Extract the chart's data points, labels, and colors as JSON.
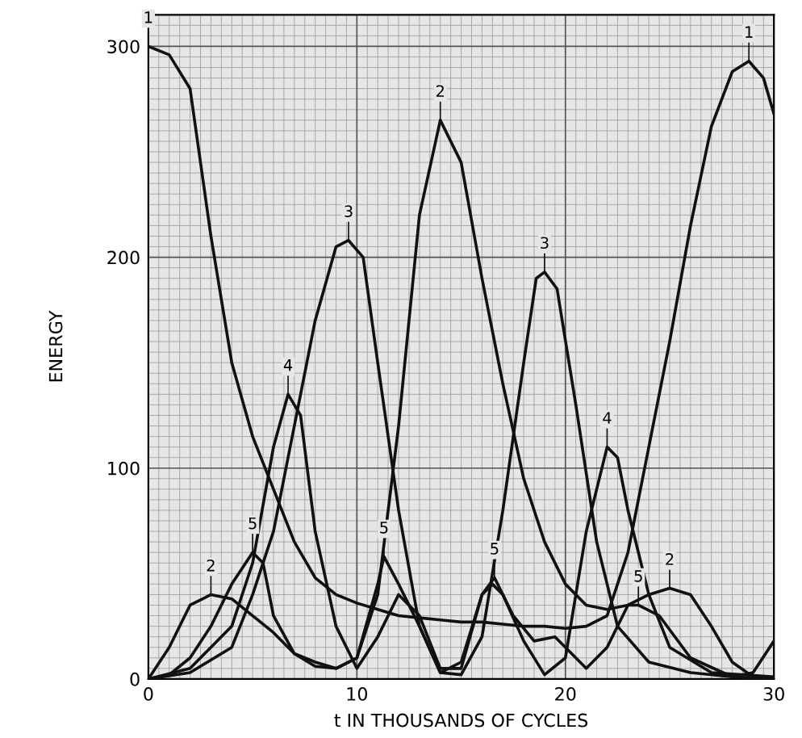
{
  "chart_data": {
    "type": "line",
    "xlabel": "t IN THOUSANDS OF CYCLES",
    "ylabel": "ENERGY",
    "xlim": [
      0,
      30
    ],
    "xticks": [
      0,
      10,
      20,
      30
    ],
    "ylim": [
      0,
      315
    ],
    "yticks": [
      0,
      100,
      200,
      300
    ],
    "grid": true,
    "legend": false,
    "marker": "none",
    "line_style": "solid",
    "series": [
      {
        "color": "#111111",
        "x": [
          0,
          1,
          2,
          3,
          4,
          5,
          6,
          7,
          8,
          9,
          10,
          11,
          12,
          13,
          14,
          15,
          16,
          17,
          18,
          19,
          20,
          21,
          22,
          23,
          24,
          25,
          26,
          27,
          28,
          28.8,
          29.5,
          30
        ],
        "values": [
          300,
          296,
          280,
          210,
          150,
          115,
          90,
          65,
          48,
          40,
          36,
          33,
          30,
          29,
          28,
          27,
          27,
          26,
          25,
          25,
          24,
          25,
          30,
          60,
          110,
          160,
          215,
          262,
          288,
          293,
          285,
          268
        ]
      },
      {
        "color": "#111111",
        "x": [
          0,
          1,
          2,
          3,
          4,
          5,
          6,
          7,
          8,
          9,
          10,
          11,
          12,
          13,
          14,
          15,
          16,
          17,
          18,
          19,
          20,
          21,
          22,
          23,
          24,
          25,
          26,
          27,
          28,
          29,
          30
        ],
        "values": [
          0,
          15,
          35,
          40,
          38,
          30,
          22,
          12,
          6,
          5,
          10,
          40,
          120,
          220,
          265,
          245,
          190,
          140,
          95,
          65,
          45,
          35,
          33,
          35,
          40,
          43,
          40,
          25,
          8,
          1,
          0
        ]
      },
      {
        "color": "#111111",
        "x": [
          0,
          2,
          4,
          5,
          6,
          7,
          8,
          9,
          9.6,
          10.3,
          11,
          12,
          13,
          14,
          15,
          16,
          17,
          18,
          18.6,
          19,
          19.6,
          20.5,
          21.5,
          22.5,
          24,
          26,
          28,
          29,
          30
        ],
        "values": [
          0,
          3,
          15,
          40,
          70,
          120,
          170,
          205,
          208,
          200,
          150,
          80,
          25,
          3,
          2,
          20,
          80,
          150,
          190,
          193,
          185,
          130,
          65,
          25,
          8,
          3,
          1,
          3,
          18
        ]
      },
      {
        "color": "#111111",
        "x": [
          0,
          2,
          4,
          5,
          6,
          6.7,
          7.3,
          8,
          9,
          10,
          11,
          12,
          13,
          14,
          15,
          16,
          16.5,
          17,
          18,
          19,
          20,
          21,
          22,
          22.5,
          23,
          24,
          25,
          27,
          30
        ],
        "values": [
          0,
          5,
          25,
          55,
          110,
          135,
          125,
          70,
          25,
          5,
          20,
          40,
          30,
          5,
          5,
          40,
          45,
          40,
          18,
          2,
          10,
          70,
          110,
          105,
          80,
          40,
          15,
          3,
          1
        ]
      },
      {
        "color": "#111111",
        "x": [
          0,
          1,
          2,
          3,
          4,
          5,
          5.5,
          6,
          7,
          8,
          9,
          10,
          11,
          11.3,
          12,
          13,
          14,
          15,
          16,
          16.6,
          17.5,
          18.5,
          19.5,
          20.5,
          21,
          22,
          23,
          23.5,
          24.5,
          26,
          28,
          30
        ],
        "values": [
          0,
          2,
          10,
          25,
          45,
          60,
          55,
          30,
          12,
          8,
          5,
          10,
          45,
          58,
          45,
          25,
          3,
          8,
          40,
          48,
          30,
          18,
          20,
          10,
          5,
          15,
          35,
          35,
          30,
          10,
          1,
          0
        ]
      }
    ],
    "annotations": [
      {
        "text": "1",
        "x": 0,
        "y": 300
      },
      {
        "text": "5",
        "x": 5,
        "y": 60
      },
      {
        "text": "4",
        "x": 6.7,
        "y": 135
      },
      {
        "text": "3",
        "x": 9.6,
        "y": 208
      },
      {
        "text": "2",
        "x": 14,
        "y": 265
      },
      {
        "text": "1",
        "x": 28.8,
        "y": 293
      },
      {
        "text": "2",
        "x": 3,
        "y": 40
      },
      {
        "text": "2",
        "x": 25,
        "y": 43
      },
      {
        "text": "3",
        "x": 19,
        "y": 193
      },
      {
        "text": "4",
        "x": 22,
        "y": 110
      },
      {
        "text": "5",
        "x": 11.3,
        "y": 58
      },
      {
        "text": "5",
        "x": 16.6,
        "y": 48
      },
      {
        "text": "5",
        "x": 23.5,
        "y": 35
      }
    ]
  }
}
